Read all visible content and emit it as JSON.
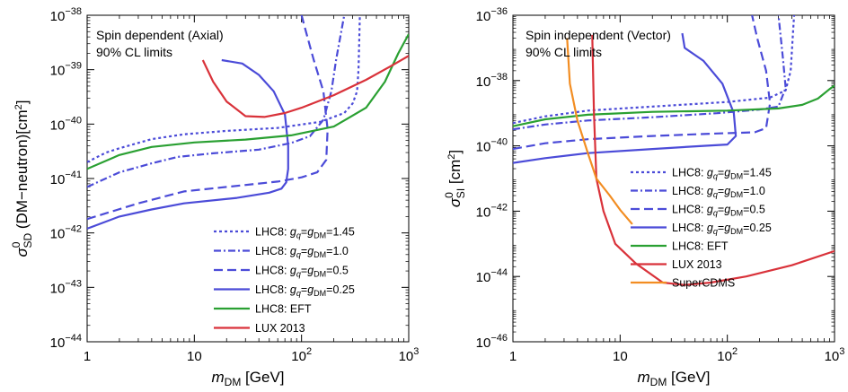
{
  "chart_data": [
    {
      "type": "line",
      "id": "left",
      "x_scale": "log",
      "y_scale": "log",
      "xlim": [
        1,
        1000
      ],
      "ylim": [
        1e-44,
        1e-38
      ],
      "x_ticks": [
        {
          "v": 1,
          "t": "1"
        },
        {
          "v": 10,
          "t": "10"
        },
        {
          "v": 100,
          "t": "10",
          "sup": "2"
        },
        {
          "v": 1000,
          "t": "10",
          "sup": "3"
        }
      ],
      "y_ticks": [
        {
          "v": 1e-38,
          "t": "10",
          "sup": "−38"
        },
        {
          "v": 1e-39,
          "t": "10",
          "sup": "−39"
        },
        {
          "v": 1e-40,
          "t": "10",
          "sup": "−40"
        },
        {
          "v": 1e-41,
          "t": "10",
          "sup": "−41"
        },
        {
          "v": 1e-42,
          "t": "10",
          "sup": "−42"
        },
        {
          "v": 1e-43,
          "t": "10",
          "sup": "−43"
        },
        {
          "v": 1e-44,
          "t": "10",
          "sup": "−44"
        }
      ],
      "xlabel": {
        "main": "m",
        "sub": "DM",
        "rest": " [GeV]"
      },
      "ylabel": {
        "main": "σ",
        "sup": "0",
        "sub": "SD",
        "rest": " (DM−neutron)[cm",
        "sup2": "2",
        "end": "]"
      },
      "annotation": [
        "Spin dependent (Axial)",
        "90% CL limits"
      ],
      "legend_position": "bottom-right",
      "series": [
        {
          "name": "LHC8: g_q=g_DM=1.45",
          "color": "#4b4bd8",
          "dash": "3,3",
          "points": [
            [
              1,
              2e-41
            ],
            [
              1.5,
              3e-41
            ],
            [
              2,
              3.6e-41
            ],
            [
              4,
              5.3e-41
            ],
            [
              8,
              6.5e-41
            ],
            [
              20,
              7.5e-41
            ],
            [
              60,
              8.5e-41
            ],
            [
              150,
              1.1e-40
            ],
            [
              250,
              1.6e-40
            ],
            [
              300,
              2.4e-40
            ],
            [
              330,
              4e-40
            ],
            [
              340,
              1e-39
            ],
            [
              350,
              1e-38
            ]
          ]
        },
        {
          "name": "LHC8: g_q=g_DM=1.0",
          "color": "#4b4bd8",
          "dash": "8,3,2,3",
          "points": [
            [
              1,
              7e-42
            ],
            [
              2,
              1.3e-41
            ],
            [
              4,
              1.9e-41
            ],
            [
              7,
              2.5e-41
            ],
            [
              15,
              2.9e-41
            ],
            [
              40,
              3.4e-41
            ],
            [
              80,
              4.5e-41
            ],
            [
              120,
              6e-41
            ],
            [
              160,
              1.2e-40
            ],
            [
              190,
              4e-40
            ],
            [
              210,
              1.5e-39
            ],
            [
              250,
              1e-38
            ]
          ]
        },
        {
          "name": "LHC8: g_q=g_DM=0.5",
          "color": "#4b4bd8",
          "dash": "10,5",
          "points": [
            [
              1,
              1.8e-42
            ],
            [
              3,
              3.5e-42
            ],
            [
              8,
              5.8e-42
            ],
            [
              20,
              7e-42
            ],
            [
              60,
              8.8e-42
            ],
            [
              100,
              1.05e-41
            ],
            [
              140,
              1.3e-41
            ],
            [
              170,
              2.2e-41
            ],
            [
              175,
              8e-41
            ],
            [
              160,
              4e-40
            ],
            [
              130,
              1.5e-39
            ],
            [
              110,
              5e-39
            ],
            [
              100,
              1e-38
            ]
          ]
        },
        {
          "name": "LHC8: g_q=g_DM=0.25",
          "color": "#4b4bd8",
          "dash": "",
          "points": [
            [
              1,
              1.2e-42
            ],
            [
              2,
              2e-42
            ],
            [
              4,
              2.7e-42
            ],
            [
              8,
              3.5e-42
            ],
            [
              25,
              4.4e-42
            ],
            [
              50,
              5.5e-42
            ],
            [
              65,
              6.5e-42
            ],
            [
              72,
              8.5e-42
            ],
            [
              75,
              1.5e-41
            ],
            [
              75,
              4e-41
            ],
            [
              70,
              1.5e-40
            ],
            [
              55,
              4e-40
            ],
            [
              40,
              8e-40
            ],
            [
              28,
              1.3e-39
            ],
            [
              18,
              1.5e-39
            ]
          ]
        },
        {
          "name": "LHC8: EFT",
          "color": "#2aa032",
          "dash": "",
          "points": [
            [
              1,
              1.5e-41
            ],
            [
              2,
              2.7e-41
            ],
            [
              4,
              3.8e-41
            ],
            [
              10,
              4.6e-41
            ],
            [
              30,
              5.2e-41
            ],
            [
              80,
              6.2e-41
            ],
            [
              200,
              9e-41
            ],
            [
              400,
              2e-40
            ],
            [
              600,
              6e-40
            ],
            [
              800,
              2e-39
            ],
            [
              1000,
              4.5e-39
            ]
          ]
        },
        {
          "name": "LUX 2013",
          "color": "#d9323a",
          "dash": "",
          "points": [
            [
              12,
              1.5e-39
            ],
            [
              15,
              6e-40
            ],
            [
              20,
              2.6e-40
            ],
            [
              30,
              1.4e-40
            ],
            [
              45,
              1.35e-40
            ],
            [
              70,
              1.6e-40
            ],
            [
              100,
              2e-40
            ],
            [
              200,
              3.4e-40
            ],
            [
              400,
              6.5e-40
            ],
            [
              700,
              1.2e-39
            ],
            [
              1000,
              1.8e-39
            ]
          ]
        }
      ]
    },
    {
      "type": "line",
      "id": "right",
      "x_scale": "log",
      "y_scale": "log",
      "xlim": [
        1,
        1000
      ],
      "ylim": [
        1e-46,
        1e-36
      ],
      "x_ticks": [
        {
          "v": 1,
          "t": "1"
        },
        {
          "v": 10,
          "t": "10"
        },
        {
          "v": 100,
          "t": "10",
          "sup": "2"
        },
        {
          "v": 1000,
          "t": "10",
          "sup": "3"
        }
      ],
      "y_ticks": [
        {
          "v": 1e-36,
          "t": "10",
          "sup": "−36"
        },
        {
          "v": 1e-38,
          "t": "10",
          "sup": "−38"
        },
        {
          "v": 1e-40,
          "t": "10",
          "sup": "−40"
        },
        {
          "v": 1e-42,
          "t": "10",
          "sup": "−42"
        },
        {
          "v": 1e-44,
          "t": "10",
          "sup": "−44"
        },
        {
          "v": 1e-46,
          "t": "10",
          "sup": "−46"
        }
      ],
      "xlabel": {
        "main": "m",
        "sub": "DM",
        "rest": " [GeV]"
      },
      "ylabel": {
        "main": "σ",
        "sup": "0",
        "sub": "SI",
        "rest": " [cm",
        "sup2": "2",
        "end": "]"
      },
      "annotation": [
        "Spin independent (Vector)",
        "90% CL limits"
      ],
      "legend_position": "bottom-right",
      "series": [
        {
          "name": "LHC8: g_q=g_DM=1.45",
          "color": "#4b4bd8",
          "dash": "3,3",
          "points": [
            [
              1,
              5e-40
            ],
            [
              2,
              8e-40
            ],
            [
              5,
              1.2e-39
            ],
            [
              20,
              1.6e-39
            ],
            [
              100,
              2.2e-39
            ],
            [
              250,
              3e-39
            ],
            [
              350,
              5e-39
            ],
            [
              390,
              2e-38
            ],
            [
              410,
              3e-37
            ],
            [
              420,
              1e-36
            ]
          ]
        },
        {
          "name": "LHC8: g_q=g_DM=1.0",
          "color": "#4b4bd8",
          "dash": "8,3,2,3",
          "points": [
            [
              1,
              3.2e-40
            ],
            [
              2,
              4.5e-40
            ],
            [
              5,
              6e-40
            ],
            [
              20,
              7.5e-40
            ],
            [
              80,
              1e-39
            ],
            [
              200,
              1.3e-39
            ],
            [
              300,
              1.6e-39
            ],
            [
              350,
              6e-39
            ],
            [
              330,
              5e-38
            ],
            [
              300,
              1e-36
            ]
          ]
        },
        {
          "name": "LHC8: g_q=g_DM=0.5",
          "color": "#4b4bd8",
          "dash": "10,5",
          "points": [
            [
              1,
              8e-41
            ],
            [
              2,
              1.2e-40
            ],
            [
              5,
              1.6e-40
            ],
            [
              20,
              2e-40
            ],
            [
              80,
              2.4e-40
            ],
            [
              180,
              2.6e-40
            ],
            [
              230,
              3.5e-40
            ],
            [
              250,
              2e-39
            ],
            [
              230,
              2e-38
            ],
            [
              190,
              2e-37
            ],
            [
              170,
              1e-36
            ]
          ]
        },
        {
          "name": "LHC8: g_q=g_DM=0.25",
          "color": "#4b4bd8",
          "dash": "",
          "points": [
            [
              1,
              3e-41
            ],
            [
              2,
              4.2e-41
            ],
            [
              5,
              6e-41
            ],
            [
              20,
              8e-41
            ],
            [
              60,
              1e-40
            ],
            [
              100,
              1.1e-40
            ],
            [
              120,
              2e-40
            ],
            [
              115,
              1e-39
            ],
            [
              90,
              8e-39
            ],
            [
              60,
              4e-38
            ],
            [
              40,
              1e-37
            ],
            [
              38,
              2.8e-37
            ]
          ]
        },
        {
          "name": "LHC8: EFT",
          "color": "#2aa032",
          "dash": "",
          "points": [
            [
              1,
              4e-40
            ],
            [
              2,
              6.5e-40
            ],
            [
              5,
              9e-40
            ],
            [
              20,
              1.1e-39
            ],
            [
              100,
              1.2e-39
            ],
            [
              300,
              1.4e-39
            ],
            [
              500,
              1.8e-39
            ],
            [
              700,
              2.8e-39
            ],
            [
              900,
              5.5e-39
            ],
            [
              1000,
              7e-39
            ]
          ]
        },
        {
          "name": "LUX 2013",
          "color": "#d9323a",
          "dash": "",
          "points": [
            [
              5.5,
              2.5e-37
            ],
            [
              5.7,
              1e-39
            ],
            [
              6,
              1e-41
            ],
            [
              7,
              1e-42
            ],
            [
              9,
              1e-43
            ],
            [
              14,
              2.5e-44
            ],
            [
              25,
              6.5e-45
            ],
            [
              40,
              5.5e-45
            ],
            [
              70,
              6.5e-45
            ],
            [
              150,
              1e-44
            ],
            [
              400,
              2.2e-44
            ],
            [
              1000,
              6e-44
            ]
          ]
        },
        {
          "name": "SuperCDMS",
          "color": "#f28d22",
          "dash": "",
          "points": [
            [
              3.2,
              2e-37
            ],
            [
              3.4,
              8e-39
            ],
            [
              4,
              6e-40
            ],
            [
              5,
              6e-41
            ],
            [
              6,
              1e-41
            ],
            [
              8,
              3e-42
            ],
            [
              10,
              1.1e-42
            ],
            [
              13,
              4e-43
            ]
          ]
        }
      ]
    }
  ]
}
